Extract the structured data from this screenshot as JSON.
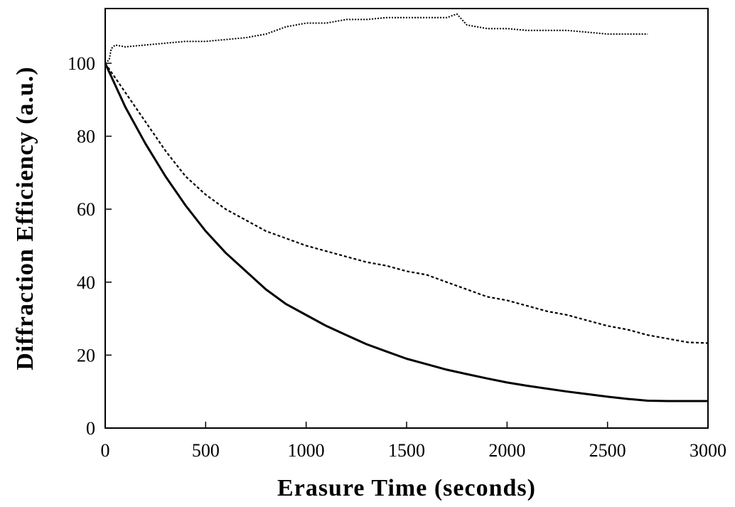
{
  "chart_data": {
    "type": "line",
    "title": "",
    "xlabel": "Erasure Time (seconds)",
    "ylabel": "Diffraction Efficiency (a.u.)",
    "xlim": [
      0,
      3000
    ],
    "ylim": [
      0,
      115
    ],
    "xticks": [
      0,
      500,
      1000,
      1500,
      2000,
      2500,
      3000
    ],
    "xtick_labels": [
      "0",
      "500",
      "1000",
      "1500",
      "2000",
      "2500",
      "3000"
    ],
    "yticks": [
      0,
      20,
      40,
      60,
      80,
      100
    ],
    "ytick_labels": [
      "0",
      "20",
      "40",
      "60",
      "80",
      "100"
    ],
    "grid": false,
    "legend": "none",
    "colors": {
      "axes": "#000000",
      "series": "#000000"
    },
    "series": [
      {
        "line_style": "solid",
        "x": [
          0,
          100,
          200,
          300,
          400,
          500,
          600,
          700,
          800,
          900,
          1000,
          1100,
          1200,
          1300,
          1400,
          1500,
          1600,
          1700,
          1800,
          1900,
          2000,
          2100,
          2200,
          2300,
          2400,
          2500,
          2600,
          2700,
          2800,
          2900,
          3000
        ],
        "y": [
          100,
          88,
          78,
          69,
          61,
          54,
          48,
          43,
          38,
          34,
          31,
          28,
          25.5,
          23,
          21,
          19,
          17.5,
          16,
          14.8,
          13.6,
          12.5,
          11.6,
          10.8,
          10,
          9.3,
          8.6,
          8,
          7.5,
          7.4,
          7.4,
          7.4
        ]
      },
      {
        "line_style": "dashed",
        "x": [
          0,
          100,
          200,
          300,
          400,
          500,
          600,
          700,
          800,
          900,
          1000,
          1100,
          1200,
          1300,
          1400,
          1500,
          1600,
          1700,
          1800,
          1900,
          2000,
          2100,
          2200,
          2300,
          2400,
          2500,
          2600,
          2700,
          2800,
          2900,
          3000
        ],
        "y": [
          100,
          92,
          84,
          76,
          69,
          64,
          60,
          57,
          54,
          52,
          50,
          48.5,
          47,
          45.5,
          44.5,
          43,
          42,
          40,
          38,
          36,
          35,
          33.5,
          32,
          31,
          29.5,
          28,
          27,
          25.5,
          24.5,
          23.5,
          23.3
        ]
      },
      {
        "line_style": "dotted",
        "x": [
          0,
          20,
          30,
          50,
          100,
          200,
          300,
          400,
          500,
          600,
          700,
          800,
          900,
          1000,
          1100,
          1200,
          1300,
          1400,
          1500,
          1600,
          1700,
          1750,
          1800,
          1900,
          2000,
          2100,
          2200,
          2300,
          2400,
          2500,
          2600,
          2700
        ],
        "y": [
          100,
          101,
          104,
          105,
          104.5,
          105,
          105.5,
          106,
          106,
          106.5,
          107,
          108,
          110,
          111,
          111,
          112,
          112,
          112.5,
          112.5,
          112.5,
          112.5,
          113.5,
          110.5,
          109.5,
          109.5,
          109,
          109,
          109,
          108.5,
          108,
          108,
          108
        ]
      }
    ]
  }
}
